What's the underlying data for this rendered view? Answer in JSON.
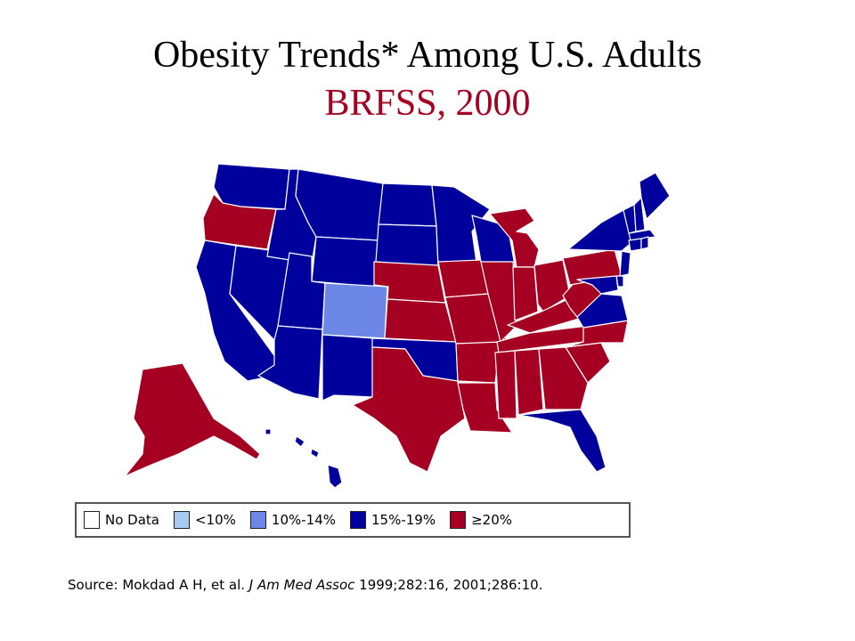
{
  "slide": {
    "title": "Obesity Trends* Among U.S. Adults",
    "subtitle": "BRFSS, 2000",
    "subtitle_color": "#A50021"
  },
  "legend": {
    "items": [
      {
        "label": "No Data",
        "color": "#FFFFFF"
      },
      {
        "label": "<10%",
        "color": "#A6CAF0"
      },
      {
        "label": "10%-14%",
        "color": "#6D87E6"
      },
      {
        "label": "15%-19%",
        "color": "#00009C"
      },
      {
        "label": "≥20%",
        "color": "#A50021"
      }
    ]
  },
  "source": {
    "prefix": "Source: Mokdad A H, et al. ",
    "journal": "J Am Med Assoc",
    "suffix": " 1999;282:16, 2001;286:10."
  },
  "map": {
    "categories_by_state": {
      "WA": "15%-19%",
      "OR": "≥20%",
      "CA": "15%-19%",
      "NV": "15%-19%",
      "ID": "15%-19%",
      "MT": "15%-19%",
      "WY": "15%-19%",
      "UT": "15%-19%",
      "AZ": "15%-19%",
      "CO": "10%-14%",
      "NM": "15%-19%",
      "ND": "15%-19%",
      "SD": "15%-19%",
      "NE": "≥20%",
      "KS": "≥20%",
      "OK": "15%-19%",
      "TX": "≥20%",
      "MN": "15%-19%",
      "IA": "≥20%",
      "MO": "≥20%",
      "AR": "≥20%",
      "LA": "≥20%",
      "WI": "15%-19%",
      "IL": "≥20%",
      "MI": "≥20%",
      "IN": "≥20%",
      "OH": "≥20%",
      "KY": "≥20%",
      "TN": "≥20%",
      "MS": "≥20%",
      "AL": "≥20%",
      "GA": "≥20%",
      "FL": "15%-19%",
      "SC": "≥20%",
      "NC": "≥20%",
      "VA": "15%-19%",
      "WV": "≥20%",
      "PA": "≥20%",
      "NY": "15%-19%",
      "VT": "15%-19%",
      "NH": "15%-19%",
      "ME": "15%-19%",
      "MA": "15%-19%",
      "CT": "15%-19%",
      "RI": "15%-19%",
      "NJ": "15%-19%",
      "DE": "15%-19%",
      "MD": "15%-19%",
      "AK": "≥20%",
      "HI": "15%-19%"
    }
  }
}
